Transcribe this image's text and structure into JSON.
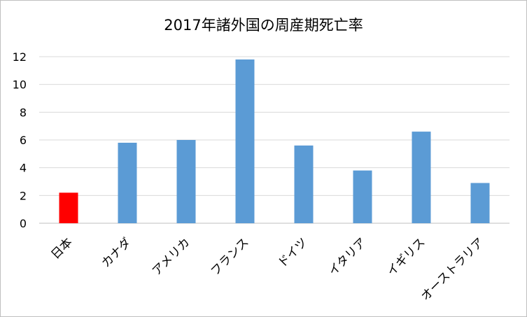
{
  "chart_data": {
    "type": "bar",
    "title": "2017年諸外国の周産期死亡率",
    "categories": [
      "日本",
      "カナダ",
      "アメリカ",
      "フランス",
      "ドイツ",
      "イタリア",
      "イギリス",
      "オーストラリア"
    ],
    "values": [
      2.2,
      5.8,
      6.0,
      11.8,
      5.6,
      3.8,
      6.6,
      2.9
    ],
    "colors": [
      "#ff0000",
      "#5b9bd5",
      "#5b9bd5",
      "#5b9bd5",
      "#5b9bd5",
      "#5b9bd5",
      "#5b9bd5",
      "#5b9bd5"
    ],
    "ylim": [
      0,
      12
    ],
    "yticks": [
      "0",
      "2",
      "4",
      "6",
      "8",
      "10",
      "12"
    ],
    "xlabel": "",
    "ylabel": "",
    "grid": true,
    "legend": "none"
  }
}
